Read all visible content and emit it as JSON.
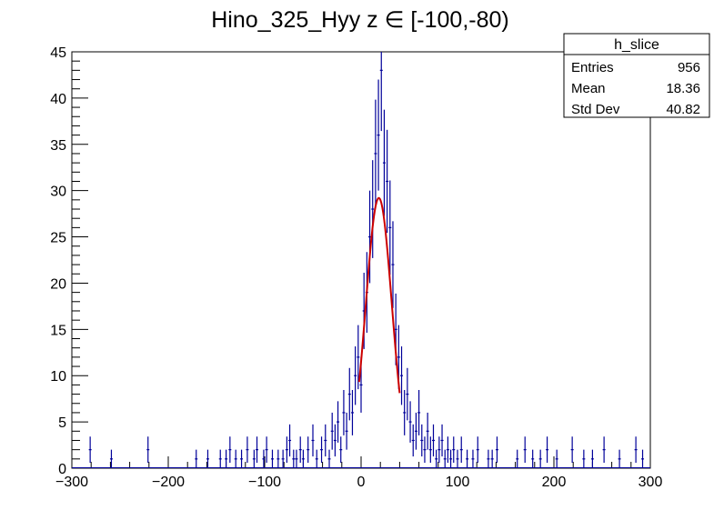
{
  "chart_data": {
    "type": "histogram",
    "title": "Hino_325_Hyy z  ∈ [-100,-80)",
    "xlabel": "",
    "ylabel": "",
    "xlim": [
      -300,
      300
    ],
    "ylim": [
      0,
      45
    ],
    "x_ticks": [
      -300,
      -200,
      -100,
      0,
      100,
      200,
      300
    ],
    "x_tick_labels": [
      "−300",
      "−200",
      "−100",
      "0",
      "100",
      "200",
      "300"
    ],
    "y_ticks": [
      0,
      5,
      10,
      15,
      20,
      25,
      30,
      35,
      40,
      45
    ],
    "y_tick_labels": [
      "0",
      "5",
      "10",
      "15",
      "20",
      "25",
      "30",
      "35",
      "40",
      "45"
    ],
    "colors": {
      "histogram": "#000099",
      "fit": "#cc0000",
      "frame": "#000000"
    },
    "histogram_bins": [
      [
        -281,
        2
      ],
      [
        -259,
        1
      ],
      [
        -221,
        2
      ],
      [
        -171,
        1
      ],
      [
        -159,
        1
      ],
      [
        -146,
        1
      ],
      [
        -140,
        1
      ],
      [
        -136,
        2
      ],
      [
        -130,
        1
      ],
      [
        -124,
        1
      ],
      [
        -118,
        2
      ],
      [
        -111,
        1
      ],
      [
        -108,
        2
      ],
      [
        -101,
        1
      ],
      [
        -98,
        2
      ],
      [
        -92,
        1
      ],
      [
        -86,
        1
      ],
      [
        -81,
        1
      ],
      [
        -77,
        2
      ],
      [
        -74,
        3
      ],
      [
        -70,
        1
      ],
      [
        -67,
        1
      ],
      [
        -63,
        2
      ],
      [
        -60,
        1
      ],
      [
        -55,
        2
      ],
      [
        -50,
        3
      ],
      [
        -46,
        1
      ],
      [
        -41,
        2
      ],
      [
        -37,
        3
      ],
      [
        -33,
        1
      ],
      [
        -30,
        4
      ],
      [
        -27,
        3
      ],
      [
        -24,
        5
      ],
      [
        -21,
        2
      ],
      [
        -18,
        6
      ],
      [
        -15,
        4
      ],
      [
        -12,
        8
      ],
      [
        -9,
        6
      ],
      [
        -6,
        10
      ],
      [
        -3,
        12
      ],
      [
        0,
        9
      ],
      [
        3,
        17
      ],
      [
        6,
        19
      ],
      [
        9,
        25
      ],
      [
        12,
        28
      ],
      [
        15,
        34
      ],
      [
        18,
        36
      ],
      [
        21,
        43
      ],
      [
        24,
        33
      ],
      [
        27,
        31
      ],
      [
        30,
        26
      ],
      [
        33,
        22
      ],
      [
        36,
        15
      ],
      [
        39,
        12
      ],
      [
        42,
        10
      ],
      [
        45,
        6
      ],
      [
        48,
        8
      ],
      [
        51,
        5
      ],
      [
        54,
        3
      ],
      [
        57,
        4
      ],
      [
        60,
        6
      ],
      [
        63,
        3
      ],
      [
        66,
        2
      ],
      [
        69,
        4
      ],
      [
        72,
        2
      ],
      [
        75,
        3
      ],
      [
        78,
        1
      ],
      [
        81,
        2
      ],
      [
        84,
        3
      ],
      [
        87,
        1
      ],
      [
        90,
        2
      ],
      [
        93,
        1
      ],
      [
        96,
        2
      ],
      [
        100,
        1
      ],
      [
        104,
        2
      ],
      [
        110,
        1
      ],
      [
        116,
        1
      ],
      [
        121,
        2
      ],
      [
        132,
        1
      ],
      [
        136,
        1
      ],
      [
        141,
        2
      ],
      [
        162,
        1
      ],
      [
        170,
        2
      ],
      [
        178,
        1
      ],
      [
        186,
        1
      ],
      [
        193,
        2
      ],
      [
        203,
        1
      ],
      [
        219,
        2
      ],
      [
        231,
        1
      ],
      [
        240,
        1
      ],
      [
        252,
        2
      ],
      [
        268,
        1
      ],
      [
        285,
        2
      ],
      [
        292,
        1
      ]
    ],
    "fit": {
      "type": "gaussian",
      "amplitude": 29.2,
      "mean": 18.4,
      "sigma": 13.5,
      "range": [
        -2,
        40
      ]
    },
    "stats_box": {
      "title": "h_slice",
      "rows": [
        {
          "label": "Entries",
          "value": "956"
        },
        {
          "label": "Mean",
          "value": "18.36"
        },
        {
          "label": "Std Dev",
          "value": "40.82"
        }
      ]
    }
  }
}
